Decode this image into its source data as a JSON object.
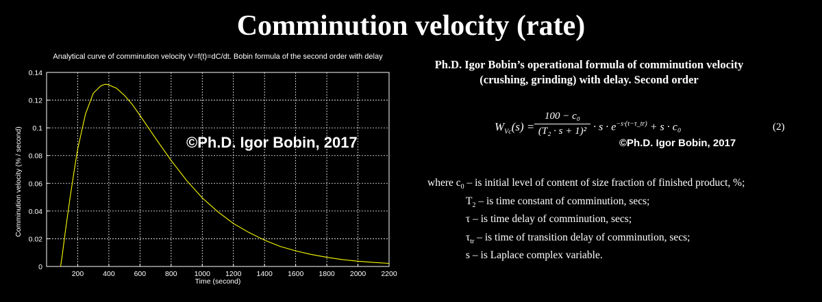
{
  "title": "Comminution velocity (rate)",
  "chart_data": {
    "type": "line",
    "title": "Analytical curve of comminution velocity V=f(t)=dC/dt.   Bobin formula of the second order with delay",
    "xlabel": "Time (second)",
    "ylabel": "Comminution velocity (% / second)",
    "xlim": [
      0,
      2200
    ],
    "ylim": [
      0,
      0.14
    ],
    "x_ticks": [
      200,
      400,
      600,
      800,
      1000,
      1200,
      1400,
      1600,
      1800,
      2000,
      2200
    ],
    "y_ticks": [
      0,
      0.02,
      0.04,
      0.06,
      0.08,
      0.1,
      0.12,
      0.14
    ],
    "y_tick_labels": [
      "0",
      "0.02",
      "0.04",
      "0.06",
      "0.08",
      "0.1",
      "0.12",
      "0.14"
    ],
    "grid": true,
    "line_color": "#ffff00",
    "series": [
      {
        "x": [
          90,
          100,
          120,
          150,
          180,
          200,
          250,
          300,
          350,
          380,
          400,
          450,
          500,
          550,
          600,
          700,
          800,
          900,
          1000,
          1100,
          1200,
          1300,
          1400,
          1500,
          1600,
          1700,
          1800,
          1900,
          2000,
          2100,
          2200
        ],
        "y": [
          0,
          0.0075,
          0.025,
          0.049,
          0.071,
          0.085,
          0.11,
          0.125,
          0.1305,
          0.1315,
          0.131,
          0.1285,
          0.1235,
          0.117,
          0.109,
          0.0925,
          0.0765,
          0.062,
          0.0495,
          0.0395,
          0.031,
          0.0245,
          0.019,
          0.0145,
          0.0113,
          0.0087,
          0.0066,
          0.005,
          0.0038,
          0.0029,
          0.0022
        ]
      }
    ]
  },
  "watermark": "©Ph.D. Igor Bobin, 2017",
  "heading": {
    "line1": "Ph.D. Igor Bobin’s operational formula of comminution velocity",
    "line2": "(crushing, grinding) with delay.  Second order"
  },
  "formula": {
    "lhs": "W",
    "lhs_sub": "Vc",
    "lhs_arg": "(s) =",
    "numerator": "100 − c₀",
    "denominator": "(T₂ · s + 1)²",
    "middle": "· s · e",
    "exponent": "−s·(τ−τ_tr)",
    "tail": " + s · c₀"
  },
  "equation_number": "(2)",
  "watermark2": "©Ph.D. Igor Bobin, 2017",
  "definitions": [
    {
      "sym": "where  c",
      "sub": "0",
      "text": " – is initial level of content of size fraction of finished product, %;"
    },
    {
      "sym": "T",
      "sub": "2",
      "text": " – is time constant of comminution, secs;"
    },
    {
      "sym": "τ",
      "sub": "",
      "text": "  – is time delay of comminution, secs;"
    },
    {
      "sym": "τ",
      "sub": "tr",
      "text": " – is time of transition delay of comminution, secs;"
    },
    {
      "sym": "s",
      "sub": "",
      "text": "  – is Laplace complex variable."
    }
  ]
}
